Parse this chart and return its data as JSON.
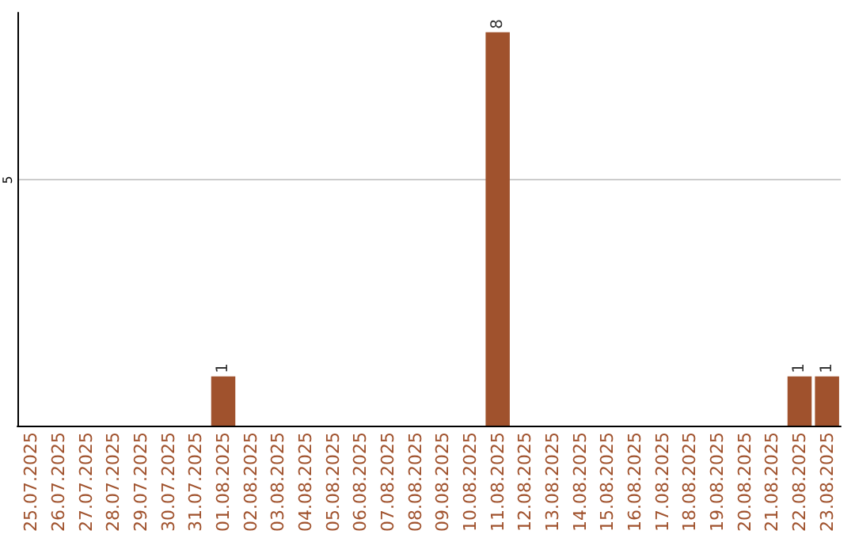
{
  "chart_data": {
    "type": "bar",
    "categories": [
      "25.07.2025",
      "26.07.2025",
      "27.07.2025",
      "28.07.2025",
      "29.07.2025",
      "30.07.2025",
      "31.07.2025",
      "01.08.2025",
      "02.08.2025",
      "03.08.2025",
      "04.08.2025",
      "05.08.2025",
      "06.08.2025",
      "07.08.2025",
      "08.08.2025",
      "09.08.2025",
      "10.08.2025",
      "11.08.2025",
      "12.08.2025",
      "13.08.2025",
      "14.08.2025",
      "15.08.2025",
      "16.08.2025",
      "17.08.2025",
      "18.08.2025",
      "19.08.2025",
      "20.08.2025",
      "21.08.2025",
      "22.08.2025",
      "23.08.2025"
    ],
    "values": [
      0,
      0,
      0,
      0,
      0,
      0,
      0,
      1,
      0,
      0,
      0,
      0,
      0,
      0,
      0,
      0,
      0,
      8,
      0,
      0,
      0,
      0,
      0,
      0,
      0,
      0,
      0,
      0,
      1,
      1
    ],
    "value_labels": [
      null,
      null,
      null,
      null,
      null,
      null,
      null,
      "1",
      null,
      null,
      null,
      null,
      null,
      null,
      null,
      null,
      null,
      "8",
      null,
      null,
      null,
      null,
      null,
      null,
      null,
      null,
      null,
      null,
      "1",
      "1"
    ],
    "color": "#a0522d",
    "ylim": [
      0,
      8.4
    ],
    "yticks": [
      5
    ],
    "grid": "y"
  }
}
